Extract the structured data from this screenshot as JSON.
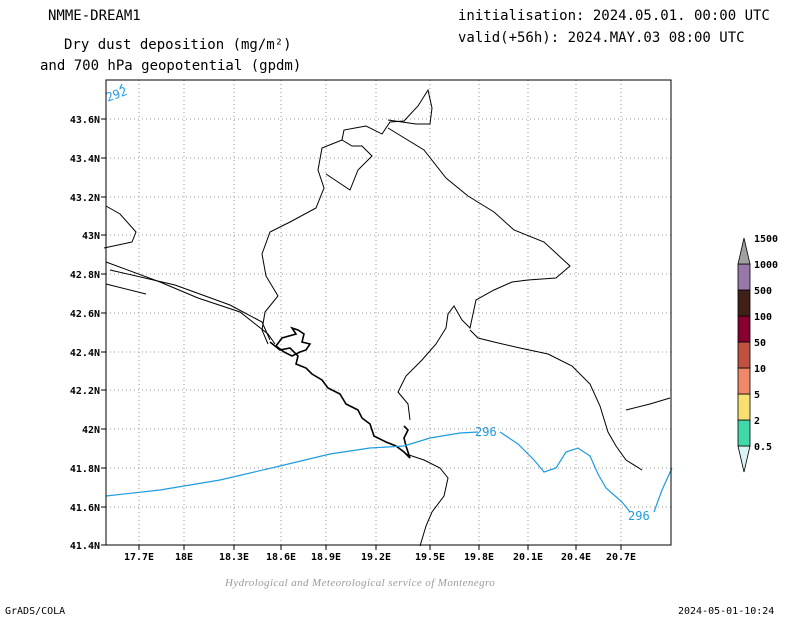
{
  "header": {
    "model": "NMME-DREAM1",
    "title_line1": "Dry dust deposition (mg/m²)",
    "title_line2": "and 700 hPa geopotential (gpdm)",
    "init": "initialisation: 2024.05.01. 00:00 UTC",
    "valid": "valid(+56h): 2024.MAY.03 08:00 UTC"
  },
  "map": {
    "lat_labels": [
      "43.6N",
      "43.4N",
      "43.2N",
      "43N",
      "42.8N",
      "42.6N",
      "42.4N",
      "42.2N",
      "42N",
      "41.8N",
      "41.6N",
      "41.4N"
    ],
    "lon_labels": [
      "17.7E",
      "18E",
      "18.3E",
      "18.6E",
      "18.9E",
      "19.2E",
      "19.5E",
      "19.8E",
      "20.1E",
      "20.4E",
      "20.7E"
    ],
    "contour_labels": [
      "292",
      "296",
      "296"
    ],
    "contour_color": "#1e9be0"
  },
  "colorbar": {
    "labels": [
      "0.5",
      "2",
      "5",
      "10",
      "50",
      "100",
      "500",
      "1000",
      "1500"
    ],
    "colors": [
      "#d8f4f4",
      "#40d8a8",
      "#f8e070",
      "#f08868",
      "#c05040",
      "#880030",
      "#402018",
      "#9878a8",
      "#a0a0a0"
    ]
  },
  "footer": {
    "credit": "Hydrological and Meteorological service of Montenegro",
    "software": "GrADS/COLA",
    "timestamp": "2024-05-01-10:24"
  }
}
